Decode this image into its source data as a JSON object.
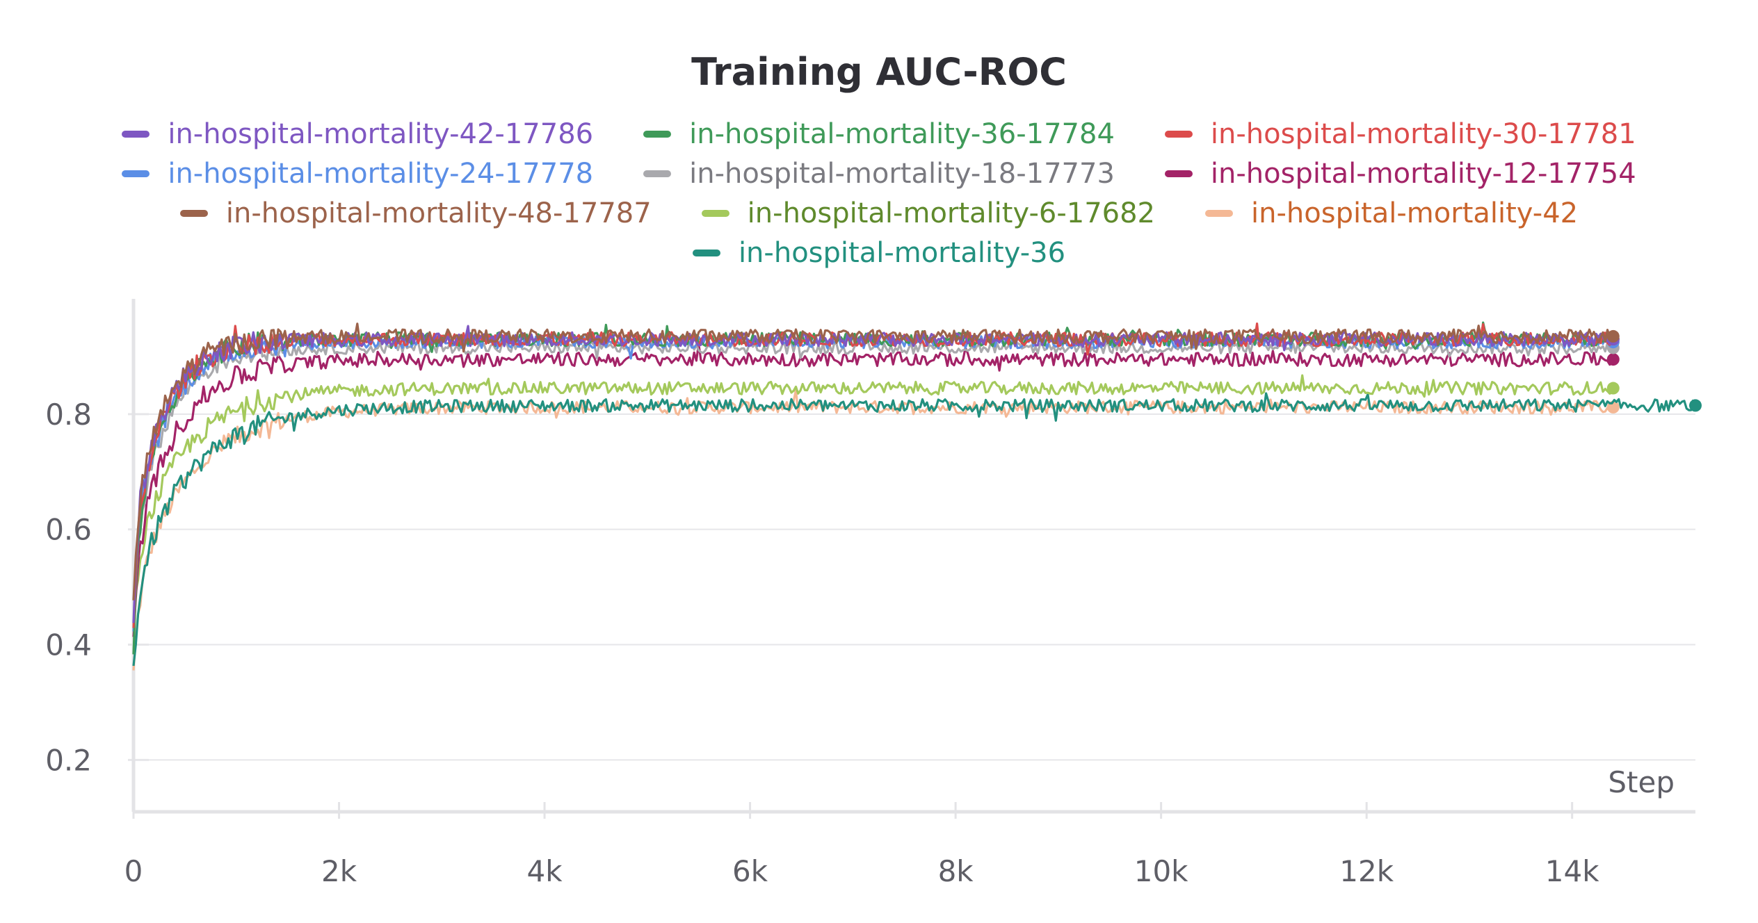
{
  "chart_data": {
    "type": "line",
    "title": "Training AUC-ROC",
    "xlabel": "Step",
    "ylabel": "",
    "xlim": [
      0,
      15200
    ],
    "ylim": [
      0.11,
      1.0
    ],
    "x_ticks": [
      0,
      2000,
      4000,
      6000,
      8000,
      10000,
      12000,
      14000
    ],
    "x_tick_labels": [
      "0",
      "2k",
      "4k",
      "6k",
      "8k",
      "10k",
      "12k",
      "14k"
    ],
    "y_ticks": [
      0.2,
      0.4,
      0.6,
      0.8
    ],
    "y_tick_labels": [
      "0.2",
      "0.4",
      "0.6",
      "0.8"
    ],
    "grid": true,
    "legend_position": "top",
    "series": [
      {
        "name": "in-hospital-mortality-42-17786",
        "color": "#7e57c2",
        "start_y": 0.45,
        "final_y": 0.93,
        "end_x": 14400,
        "rise": 0.55,
        "noise": 0.012
      },
      {
        "name": "in-hospital-mortality-36-17784",
        "color": "#3f9a59",
        "start_y": 0.4,
        "final_y": 0.93,
        "end_x": 14400,
        "rise": 0.55,
        "noise": 0.012
      },
      {
        "name": "in-hospital-mortality-30-17781",
        "color": "#dc4b4b",
        "start_y": 0.42,
        "final_y": 0.93,
        "end_x": 14400,
        "rise": 0.55,
        "noise": 0.012
      },
      {
        "name": "in-hospital-mortality-24-17778",
        "color": "#5b8ee6",
        "start_y": 0.44,
        "final_y": 0.925,
        "end_x": 14400,
        "rise": 0.6,
        "noise": 0.011
      },
      {
        "name": "in-hospital-mortality-18-17773",
        "color": "#a9a9ad",
        "start_y": 0.42,
        "final_y": 0.915,
        "end_x": 14400,
        "rise": 0.6,
        "noise": 0.01
      },
      {
        "name": "in-hospital-mortality-12-17754",
        "color": "#a32367",
        "start_y": 0.4,
        "final_y": 0.895,
        "end_x": 14400,
        "rise": 0.75,
        "noise": 0.012
      },
      {
        "name": "in-hospital-mortality-48-17787",
        "color": "#9c634b",
        "start_y": 0.46,
        "final_y": 0.935,
        "end_x": 14400,
        "rise": 0.55,
        "noise": 0.012
      },
      {
        "name": "in-hospital-mortality-6-17682",
        "color": "#a4c95c",
        "start_y": 0.42,
        "final_y": 0.845,
        "end_x": 14400,
        "rise": 0.9,
        "noise": 0.011
      },
      {
        "name": "in-hospital-mortality-42",
        "color": "#f4b895",
        "start_y": 0.35,
        "final_y": 0.812,
        "end_x": 14400,
        "rise": 1.0,
        "noise": 0.011
      },
      {
        "name": "in-hospital-mortality-36",
        "color": "#22907f",
        "start_y": 0.36,
        "final_y": 0.815,
        "end_x": 15200,
        "rise": 1.0,
        "noise": 0.011
      }
    ]
  },
  "legend_label_colors": [
    "#7e57c2",
    "#3f9a59",
    "#dc4b4b",
    "#5b8ee6",
    "#7a7a80",
    "#a32367",
    "#9c634b",
    "#5f8a2c",
    "#c9642b",
    "#22907f"
  ]
}
